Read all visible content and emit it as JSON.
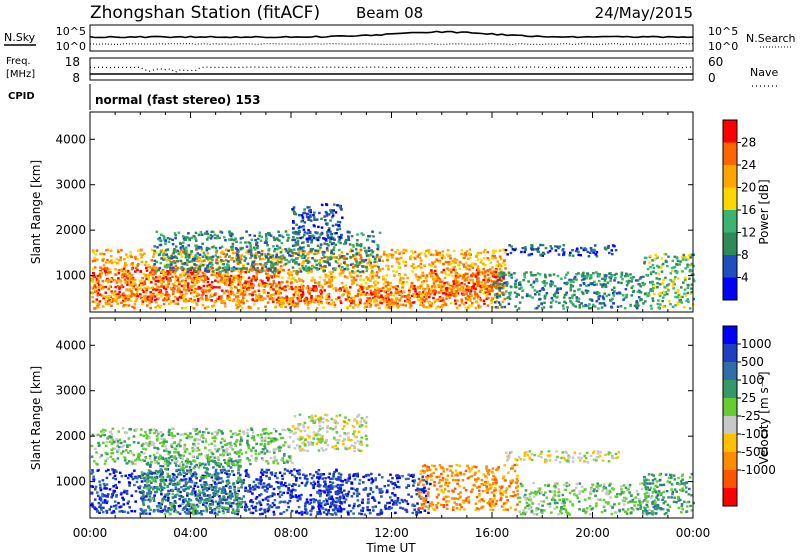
{
  "header": {
    "title": "Zhongshan Station (fitACF)",
    "beam": "Beam 08",
    "date": "24/May/2015"
  },
  "nsky_panel": {
    "left_label": "N.Sky",
    "right_label": "N.Search",
    "tick_top": "10^5",
    "tick_bottom": "10^0"
  },
  "freq_panel": {
    "left_label_1": "Freq.",
    "left_label_2": "[MHz]",
    "right_label": "Nave",
    "left_ticks": [
      "18",
      "8"
    ],
    "right_ticks": [
      "60",
      "0"
    ]
  },
  "cpid": {
    "label": "CPID",
    "mode_text": "normal (fast stereo) 153"
  },
  "colors": {
    "power": [
      "#0000ff",
      "#1f4fbf",
      "#2e8b57",
      "#3cb371",
      "#ffd700",
      "#ffa500",
      "#ff6600",
      "#ff0000"
    ],
    "velocity": [
      "#ff0000",
      "#ff5500",
      "#ff8c00",
      "#ffc000",
      "#c8c8c8",
      "#66cc33",
      "#339966",
      "#2e6fa8",
      "#1f3fbf",
      "#0000ff"
    ]
  },
  "chart_data": [
    {
      "type": "heatmap",
      "name": "power",
      "ylabel": "Slant Range [km]",
      "xlabel": "Time UT",
      "x_ticks": [
        "00:00",
        "04:00",
        "08:00",
        "12:00",
        "16:00",
        "20:00",
        "00:00"
      ],
      "xlim": [
        0,
        24
      ],
      "y_ticks": [
        1000,
        2000,
        3000,
        4000
      ],
      "ylim": [
        200,
        4600
      ],
      "colorbar": {
        "label": "Power [dB]",
        "ticks": [
          "4",
          "8",
          "12",
          "16",
          "20",
          "24",
          "28"
        ],
        "bins": 8
      },
      "regions": [
        {
          "t0": 0.0,
          "t1": 7.5,
          "r0": 450,
          "r1": 1200,
          "level": 7
        },
        {
          "t0": 7.5,
          "t1": 16.0,
          "r0": 400,
          "r1": 800,
          "level": 7
        },
        {
          "t0": 0.0,
          "t1": 16.5,
          "r0": 300,
          "r1": 1600,
          "level": 5
        },
        {
          "t0": 13.5,
          "t1": 16.5,
          "r0": 600,
          "r1": 1200,
          "level": 6
        },
        {
          "t0": 2.5,
          "t1": 11.5,
          "r0": 1100,
          "r1": 2000,
          "level": 2
        },
        {
          "t0": 8.0,
          "t1": 10.0,
          "r0": 1800,
          "r1": 2600,
          "level": 1
        },
        {
          "t0": 16.5,
          "t1": 21.0,
          "r0": 1450,
          "r1": 1700,
          "level": 1
        },
        {
          "t0": 16.0,
          "t1": 22.0,
          "r0": 300,
          "r1": 1100,
          "level": 2
        },
        {
          "t0": 22.0,
          "t1": 24.0,
          "r0": 300,
          "r1": 1500,
          "level": 3
        }
      ]
    },
    {
      "type": "heatmap",
      "name": "velocity",
      "ylabel": "Slant Range [km]",
      "xlabel": "Time UT",
      "x_ticks": [
        "00:00",
        "04:00",
        "08:00",
        "12:00",
        "16:00",
        "20:00",
        "00:00"
      ],
      "xlim": [
        0,
        24
      ],
      "y_ticks": [
        1000,
        2000,
        3000,
        4000
      ],
      "ylim": [
        200,
        4600
      ],
      "colorbar": {
        "label": "Velocity [m s⁻¹]",
        "ticks": [
          "1000",
          "500",
          "100",
          "25",
          "-25",
          "-100",
          "-500",
          "-1000"
        ],
        "bins": 10
      },
      "regions": [
        {
          "t0": 0.0,
          "t1": 10.0,
          "r0": 300,
          "r1": 1300,
          "level": 8
        },
        {
          "t0": 2.0,
          "t1": 6.0,
          "r0": 300,
          "r1": 1600,
          "level": 6
        },
        {
          "t0": 9.0,
          "t1": 13.5,
          "r0": 300,
          "r1": 1200,
          "level": 8
        },
        {
          "t0": 13.0,
          "t1": 17.0,
          "r0": 400,
          "r1": 1400,
          "level": 2
        },
        {
          "t0": 8.0,
          "t1": 11.0,
          "r0": 1700,
          "r1": 2500,
          "level": 4
        },
        {
          "t0": 0.0,
          "t1": 8.0,
          "r0": 1400,
          "r1": 2200,
          "level": 5
        },
        {
          "t0": 16.5,
          "t1": 21.0,
          "r0": 1450,
          "r1": 1700,
          "level": 4
        },
        {
          "t0": 17.0,
          "t1": 22.5,
          "r0": 300,
          "r1": 1000,
          "level": 5
        },
        {
          "t0": 22.0,
          "t1": 24.0,
          "r0": 300,
          "r1": 1200,
          "level": 6
        }
      ]
    }
  ]
}
